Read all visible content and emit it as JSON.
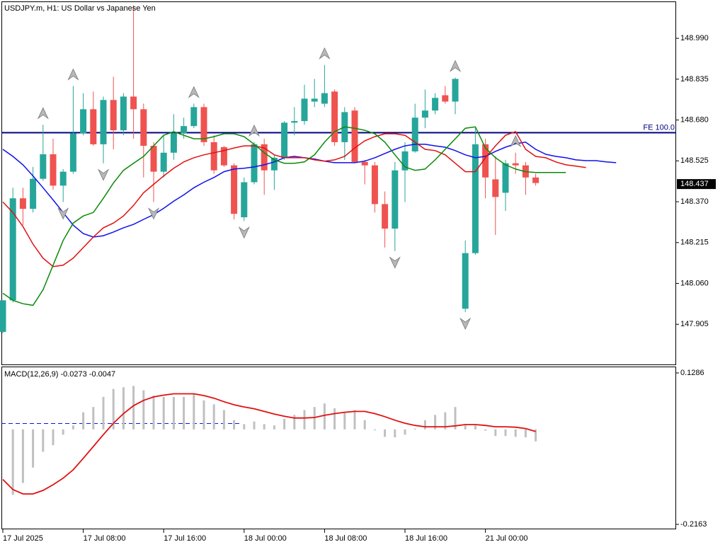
{
  "chart_data": [
    {
      "type": "candlestick",
      "title": "USDJPY.m, H1:  US Dollar vs Japanese Yen",
      "categories": [
        "17 Jul 2025",
        null,
        null,
        null,
        null,
        null,
        null,
        null,
        "17 Jul 08:00",
        null,
        null,
        null,
        null,
        null,
        null,
        null,
        "17 Jul 16:00",
        null,
        null,
        null,
        null,
        null,
        null,
        null,
        "18 Jul 00:00",
        null,
        null,
        null,
        null,
        null,
        null,
        null,
        "18 Jul 08:00",
        null,
        null,
        null,
        null,
        null,
        null,
        null,
        "18 Jul 16:00",
        null,
        null,
        null,
        null,
        null,
        null,
        null,
        "21 Jul 00:00",
        null,
        null,
        null,
        null,
        null,
        null,
        null,
        null,
        null,
        null,
        null,
        null,
        null
      ],
      "open": [
        147.876,
        147.996,
        148.383,
        148.343,
        148.457,
        148.55,
        148.431,
        148.484,
        148.63,
        148.721,
        148.588,
        148.756,
        148.641,
        148.769,
        148.721,
        148.582,
        148.484,
        148.556,
        148.63,
        148.657,
        148.729,
        148.596,
        148.577,
        148.508,
        148.311,
        148.444,
        148.588,
        148.489,
        148.537,
        148.67,
        148.676,
        148.75,
        148.742,
        148.788,
        148.596,
        148.716,
        148.521,
        148.508,
        148.361,
        148.268,
        148.489,
        148.561,
        148.689,
        148.716,
        148.774,
        148.75,
        147.964,
        148.175,
        148.588,
        148.455,
        148.404,
        148.516,
        148.508,
        148.462,
        null,
        null,
        null,
        null,
        null,
        null,
        null,
        null
      ],
      "high": [
        147.996,
        148.423,
        148.423,
        148.502,
        148.662,
        148.609,
        148.494,
        148.809,
        148.782,
        148.788,
        148.769,
        148.844,
        148.782,
        149.116,
        148.742,
        148.596,
        148.622,
        148.702,
        148.689,
        148.742,
        148.742,
        148.622,
        148.582,
        148.516,
        148.462,
        148.596,
        148.609,
        148.548,
        148.676,
        148.729,
        148.814,
        148.836,
        148.889,
        148.796,
        148.729,
        148.729,
        148.529,
        148.521,
        148.409,
        148.521,
        148.596,
        148.742,
        148.796,
        148.782,
        148.809,
        148.841,
        148.223,
        148.649,
        148.609,
        148.542,
        148.529,
        148.556,
        148.521,
        148.476,
        null,
        null,
        null,
        null,
        null,
        null,
        null,
        null
      ],
      "low": [
        147.871,
        147.988,
        148.281,
        148.329,
        148.449,
        148.415,
        148.369,
        148.476,
        148.622,
        148.582,
        148.516,
        148.569,
        148.622,
        148.609,
        148.462,
        148.369,
        148.462,
        148.529,
        148.609,
        148.649,
        148.582,
        148.476,
        148.502,
        148.303,
        148.297,
        148.436,
        148.396,
        148.415,
        148.529,
        148.622,
        148.662,
        148.729,
        148.729,
        148.582,
        148.529,
        148.516,
        148.436,
        148.329,
        148.196,
        148.183,
        148.369,
        148.556,
        148.649,
        148.702,
        148.742,
        148.702,
        147.951,
        148.169,
        148.383,
        148.244,
        148.335,
        148.476,
        148.396,
        148.431,
        null,
        null,
        null,
        null,
        null,
        null,
        null,
        null
      ],
      "close": [
        147.996,
        148.383,
        148.343,
        148.457,
        148.55,
        148.431,
        148.484,
        148.63,
        148.721,
        148.588,
        148.756,
        148.641,
        148.769,
        148.721,
        148.582,
        148.484,
        148.556,
        148.63,
        148.657,
        148.729,
        148.596,
        148.489,
        148.508,
        148.324,
        148.444,
        148.588,
        148.489,
        148.537,
        148.67,
        148.676,
        148.761,
        148.761,
        148.782,
        148.596,
        148.71,
        148.521,
        148.508,
        148.361,
        148.268,
        148.489,
        148.561,
        148.689,
        148.716,
        148.764,
        148.75,
        148.836,
        148.175,
        148.588,
        148.462,
        148.388,
        148.516,
        148.508,
        148.462,
        148.441,
        null,
        null,
        null,
        null,
        null,
        null,
        null,
        null
      ],
      "up_color": "#26a69a",
      "down_color": "#ef5350",
      "series": [
        {
          "color": "#1010ee",
          "values": [
            148.569,
            148.542,
            148.51,
            148.468,
            148.423,
            148.377,
            148.329,
            148.281,
            148.249,
            148.236,
            148.241,
            148.255,
            148.271,
            148.284,
            148.303,
            148.321,
            148.345,
            148.372,
            148.396,
            148.423,
            148.444,
            148.462,
            148.484,
            148.494,
            148.497,
            148.502,
            148.51,
            148.521,
            148.537,
            148.542,
            148.537,
            148.532,
            148.524,
            148.518,
            148.518,
            148.518,
            148.524,
            148.537,
            148.553,
            148.569,
            148.582,
            148.588,
            148.588,
            148.582,
            148.577,
            148.564,
            148.548,
            148.537,
            148.542,
            148.561,
            148.577,
            148.59,
            148.596,
            148.569,
            148.55,
            148.542,
            148.537,
            148.529,
            148.526,
            148.526,
            148.521,
            148.518
          ]
        },
        {
          "color": "#e01010",
          "values": [
            148.369,
            148.329,
            148.276,
            148.209,
            148.156,
            148.124,
            148.129,
            148.156,
            148.196,
            148.236,
            148.271,
            148.289,
            148.316,
            148.356,
            148.404,
            148.436,
            148.468,
            148.497,
            148.521,
            148.537,
            148.548,
            148.556,
            148.564,
            148.574,
            148.582,
            148.582,
            148.574,
            148.548,
            148.537,
            148.537,
            148.537,
            148.529,
            148.524,
            148.529,
            148.542,
            148.574,
            148.601,
            148.617,
            148.628,
            148.628,
            148.622,
            148.596,
            148.569,
            148.564,
            148.548,
            148.516,
            148.484,
            148.484,
            148.537,
            148.582,
            148.622,
            148.636,
            148.569,
            148.542,
            148.537,
            148.521,
            148.51,
            148.505,
            148.5,
            null,
            null,
            null
          ]
        },
        {
          "color": "#0a8a0a",
          "values": [
            148.023,
            147.996,
            147.983,
            147.977,
            148.036,
            148.129,
            148.223,
            148.289,
            148.316,
            148.329,
            148.383,
            148.441,
            148.489,
            148.516,
            148.542,
            148.582,
            148.622,
            148.636,
            148.622,
            148.609,
            148.609,
            148.617,
            148.628,
            148.628,
            148.617,
            148.588,
            148.556,
            148.529,
            148.516,
            148.516,
            148.521,
            148.548,
            148.596,
            148.636,
            148.654,
            148.649,
            148.641,
            148.628,
            148.596,
            148.548,
            148.502,
            148.489,
            148.494,
            148.529,
            148.569,
            148.609,
            148.649,
            148.654,
            148.574,
            148.537,
            148.51,
            148.494,
            148.484,
            148.481,
            148.481,
            148.481,
            148.481,
            null,
            null,
            null,
            null,
            null
          ]
        }
      ],
      "fractals_up": {
        "color": "#b8b8b8",
        "values": [
          null,
          null,
          null,
          null,
          148.662,
          null,
          null,
          148.809,
          null,
          null,
          null,
          null,
          null,
          null,
          null,
          null,
          null,
          null,
          null,
          148.742,
          null,
          null,
          null,
          null,
          null,
          148.596,
          null,
          null,
          null,
          null,
          null,
          null,
          148.889,
          null,
          null,
          null,
          null,
          null,
          null,
          null,
          null,
          null,
          null,
          null,
          null,
          148.841,
          null,
          null,
          null,
          null,
          null,
          148.556,
          null,
          null,
          null,
          null,
          null,
          null,
          null,
          null,
          null,
          null
        ]
      },
      "fractals_down": {
        "color": "#b8b8b8",
        "values": [
          null,
          null,
          null,
          null,
          null,
          null,
          148.369,
          null,
          null,
          null,
          148.516,
          null,
          null,
          null,
          null,
          148.369,
          null,
          null,
          null,
          null,
          null,
          null,
          null,
          null,
          148.297,
          null,
          null,
          null,
          null,
          null,
          null,
          null,
          null,
          null,
          null,
          null,
          null,
          null,
          null,
          148.183,
          null,
          null,
          null,
          null,
          null,
          null,
          147.951,
          null,
          null,
          null,
          null,
          null,
          null,
          null,
          null,
          null,
          null,
          null,
          null,
          null,
          null,
          null
        ]
      },
      "fe_line": {
        "label": "FE 100.0",
        "value": 148.632,
        "color": "#000080"
      },
      "current_price": 148.437,
      "ylim": [
        147.75,
        149.13
      ],
      "yticks": [
        {
          "value": 148.99,
          "label": "148.990"
        },
        148.835,
        {
          "value": 148.68,
          "label": "148.680"
        },
        148.525,
        {
          "value": 148.37,
          "label": "148.370"
        },
        148.215,
        {
          "value": 148.06,
          "label": "148.060"
        },
        147.905
      ]
    },
    {
      "type": "macd",
      "label": "MACD(12,26,9) -0.0273 -0.0047",
      "histogram": {
        "color": "#c0c0c0",
        "values": [
          null,
          -0.149,
          -0.122,
          -0.087,
          -0.051,
          -0.036,
          -0.012,
          0.009,
          0.039,
          0.051,
          0.074,
          0.092,
          0.096,
          0.099,
          0.089,
          0.077,
          0.074,
          0.074,
          0.074,
          0.081,
          0.066,
          0.057,
          0.044,
          0.021,
          0.012,
          0.018,
          0.012,
          0.009,
          0.024,
          0.033,
          0.044,
          0.051,
          0.059,
          0.048,
          0.039,
          0.044,
          0.021,
          -0.002,
          -0.017,
          -0.018,
          -0.012,
          0.002,
          0.021,
          0.033,
          0.039,
          0.051,
          0.009,
          0.009,
          -0.003,
          -0.015,
          -0.015,
          -0.017,
          -0.018,
          -0.0273,
          null,
          null,
          null,
          null,
          null,
          null,
          null,
          null
        ]
      },
      "signal": {
        "color": "#e01010",
        "values": [
          -0.114,
          -0.137,
          -0.147,
          -0.147,
          -0.139,
          -0.126,
          -0.111,
          -0.092,
          -0.066,
          -0.039,
          -0.012,
          0.014,
          0.036,
          0.054,
          0.066,
          0.074,
          0.078,
          0.081,
          0.081,
          0.081,
          0.077,
          0.071,
          0.063,
          0.056,
          0.051,
          0.047,
          0.041,
          0.035,
          0.03,
          0.026,
          0.026,
          0.027,
          0.032,
          0.036,
          0.039,
          0.041,
          0.041,
          0.036,
          0.029,
          0.021,
          0.014,
          0.009,
          0.006,
          0.006,
          0.006,
          0.008,
          0.011,
          0.011,
          0.009,
          0.006,
          0.006,
          0.005,
          0.002,
          -0.0047,
          null,
          null,
          null,
          null,
          null,
          null,
          null,
          null
        ]
      },
      "ylim": [
        -0.2163,
        0.1286
      ],
      "yticks": [
        0.1286,
        -0.2163
      ]
    }
  ]
}
